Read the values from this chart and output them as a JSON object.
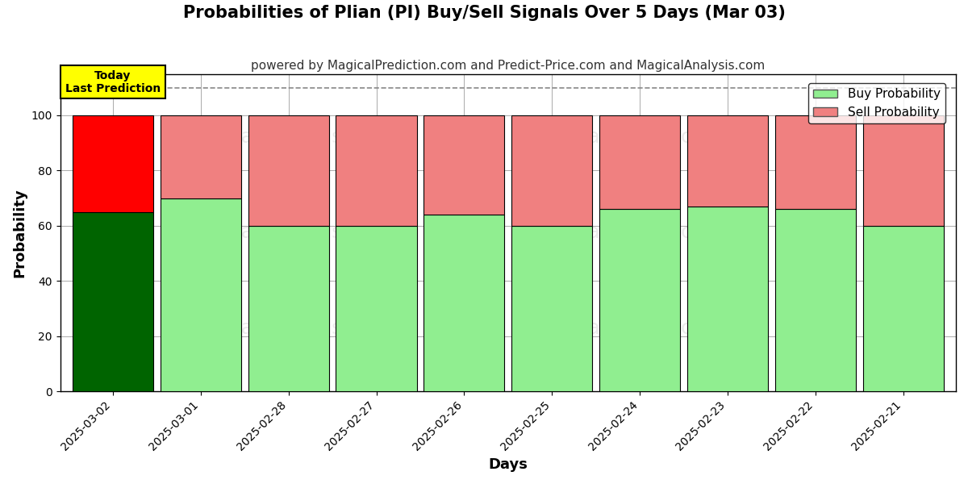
{
  "title": "Probabilities of Plian (PI) Buy/Sell Signals Over 5 Days (Mar 03)",
  "subtitle": "powered by MagicalPrediction.com and Predict-Price.com and MagicalAnalysis.com",
  "xlabel": "Days",
  "ylabel": "Probability",
  "categories": [
    "2025-03-02",
    "2025-03-01",
    "2025-02-28",
    "2025-02-27",
    "2025-02-26",
    "2025-02-25",
    "2025-02-24",
    "2025-02-23",
    "2025-02-22",
    "2025-02-21"
  ],
  "buy_values": [
    65,
    70,
    60,
    60,
    64,
    60,
    66,
    67,
    66,
    60
  ],
  "sell_values": [
    35,
    30,
    40,
    40,
    36,
    40,
    34,
    33,
    34,
    40
  ],
  "today_buy_color": "#006400",
  "today_sell_color": "#FF0000",
  "other_buy_color": "#90EE90",
  "other_sell_color": "#F08080",
  "today_annotation": "Today\nLast Prediction",
  "annotation_bg": "#FFFF00",
  "bar_edge_color": "#000000",
  "grid_color": "#888888",
  "dashed_line_y": 110,
  "ylim": [
    0,
    115
  ],
  "yticks": [
    0,
    20,
    40,
    60,
    80,
    100
  ],
  "watermark_texts": [
    "calAnalysis.com",
    "MagicalPrediction.com"
  ],
  "watermark_color": "#C8C8C8",
  "legend_buy_color": "#90EE90",
  "legend_sell_color": "#F08080",
  "title_fontsize": 15,
  "subtitle_fontsize": 11,
  "axis_label_fontsize": 13,
  "tick_fontsize": 10,
  "legend_fontsize": 11,
  "bar_width": 0.92
}
